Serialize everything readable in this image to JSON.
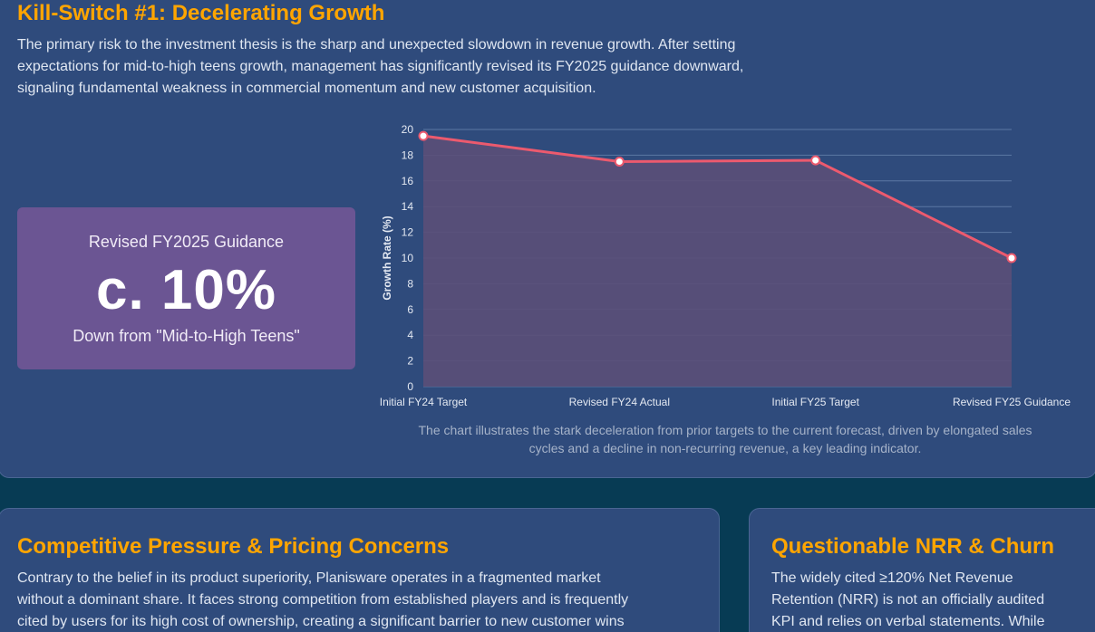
{
  "section1": {
    "title": "Kill-Switch #1: Decelerating Growth",
    "paragraph_lines": [
      "The primary risk to the investment thesis is the sharp and unexpected slowdown in revenue growth. After setting",
      "expectations for mid-to-high teens growth, management has significantly revised its FY2025 guidance downward,",
      "signaling fundamental weakness in commercial momentum and new customer acquisition."
    ]
  },
  "kpi": {
    "label": "Revised FY2025 Guidance",
    "value": "c. 10%",
    "sub": "Down from \"Mid-to-High Teens\""
  },
  "chart_data": {
    "type": "line",
    "fill": true,
    "categories": [
      "Initial FY24 Target",
      "Revised FY24 Actual",
      "Initial FY25 Target",
      "Revised FY25 Guidance"
    ],
    "values": [
      19.5,
      17.5,
      17.6,
      10
    ],
    "title": "",
    "xlabel": "",
    "ylabel": "Growth Rate (%)",
    "ylim": [
      0,
      20
    ],
    "yticks": [
      0,
      2,
      4,
      6,
      8,
      10,
      12,
      14,
      16,
      18,
      20
    ],
    "grid": true,
    "legend": "none"
  },
  "chart_caption_lines": [
    "The chart illustrates the stark deceleration from prior targets to the current forecast, driven by elongated sales",
    "cycles and a decline in non-recurring revenue, a key leading indicator."
  ],
  "section2": {
    "title": "Competitive Pressure & Pricing Concerns",
    "paragraph_lines": [
      "Contrary to the belief in its product superiority, Planisware operates in a fragmented market",
      "without a dominant share. It faces strong competition from established players and is frequently",
      "cited by users for its high cost of ownership, creating a significant barrier to new customer wins"
    ]
  },
  "section3": {
    "title": "Questionable NRR & Churn",
    "paragraph_lines": [
      "The widely cited ≥120% Net Revenue",
      "Retention (NRR) is not an officially audited",
      "KPI and relies on verbal statements. While"
    ]
  },
  "colors": {
    "accent_title": "#ffa500",
    "panel_bg": "#2f4b7c",
    "page_bg": "#073b54",
    "kpi_bg": "#6b5593",
    "line": "#ec5a6e",
    "area_fill": "#5b4f78"
  }
}
